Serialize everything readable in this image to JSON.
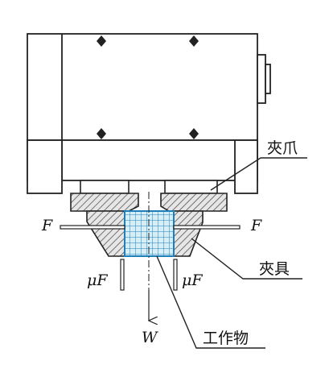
{
  "labels": {
    "gripper_claw": "夾爪",
    "fixture": "夾具",
    "workpiece": "工作物"
  },
  "symbols": {
    "force_left": "F",
    "force_right": "F",
    "friction_left": "μF",
    "friction_right": "μF",
    "weight": "W"
  },
  "colors": {
    "line": "#222222",
    "hatch": "#444444",
    "workpiece_fill": "#cfe9f2",
    "workpiece_grid": "#1f7fb8",
    "fixture_fill": "#d9d9d9"
  }
}
